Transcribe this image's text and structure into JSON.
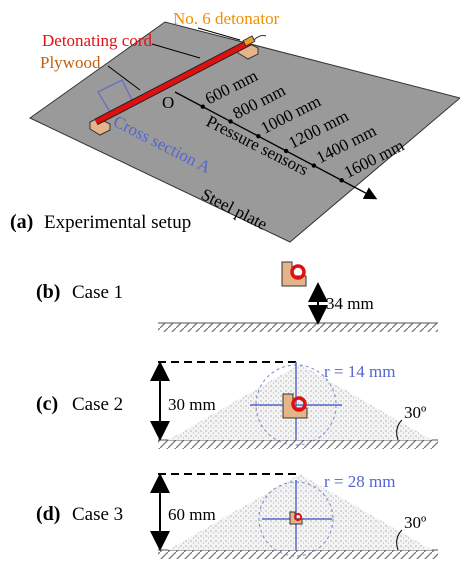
{
  "panel_a": {
    "detonator": "No. 6 detonator",
    "cord": "Detonating cord",
    "plywood": "Plywood",
    "origin": "O",
    "distances": [
      "600 mm",
      "800 mm",
      "1000 mm",
      "1200 mm",
      "1400 mm",
      "1600 mm"
    ],
    "sensors": "Pressure sensors",
    "cross_section": "Cross section A",
    "plate": "Steel plate",
    "tag": "(a)",
    "caption": "Experimental setup"
  },
  "panel_b": {
    "tag": "(b)",
    "caption": "Case 1",
    "height": "34 mm"
  },
  "panel_c": {
    "tag": "(c)",
    "caption": "Case 2",
    "height": "30 mm",
    "radius": "r = 14 mm",
    "angle": "30º"
  },
  "panel_d": {
    "tag": "(d)",
    "caption": "Case 3",
    "height": "60 mm",
    "radius": "r = 28 mm",
    "angle": "30º"
  }
}
